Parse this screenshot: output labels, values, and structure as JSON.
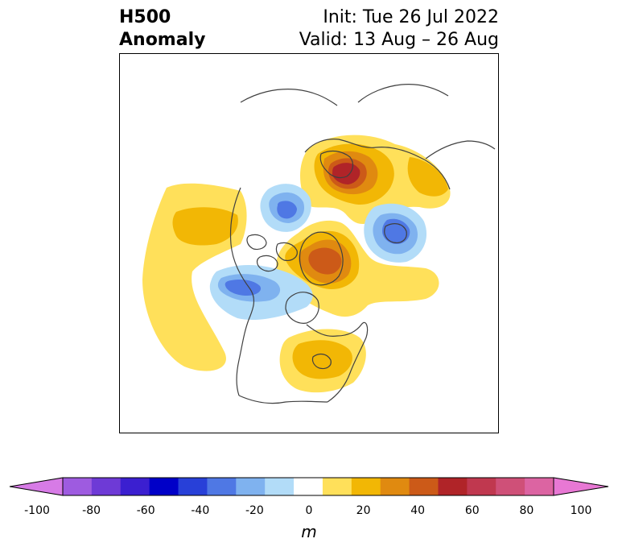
{
  "header": {
    "title_line1": "H500",
    "title_line2": "Anomaly",
    "init_text": "Init: Tue 26 Jul 2022",
    "valid_text": "Valid: 13 Aug – 26 Aug"
  },
  "colorbar": {
    "tick_labels": [
      "-100",
      "-80",
      "-60",
      "-40",
      "-20",
      "0",
      "20",
      "40",
      "60",
      "80",
      "100"
    ],
    "units": "m",
    "colors": [
      "#d77be6",
      "#9e5be0",
      "#6e3ad6",
      "#3b1fd0",
      "#0000c8",
      "#2840d8",
      "#4f78e4",
      "#7fb2ef",
      "#b2dcf8",
      "#ffffff",
      "#ffe05a",
      "#f2b705",
      "#e08a10",
      "#cc5a18",
      "#b02428",
      "#c0384f",
      "#cf5078",
      "#dc64a2",
      "#e878d4"
    ]
  }
}
